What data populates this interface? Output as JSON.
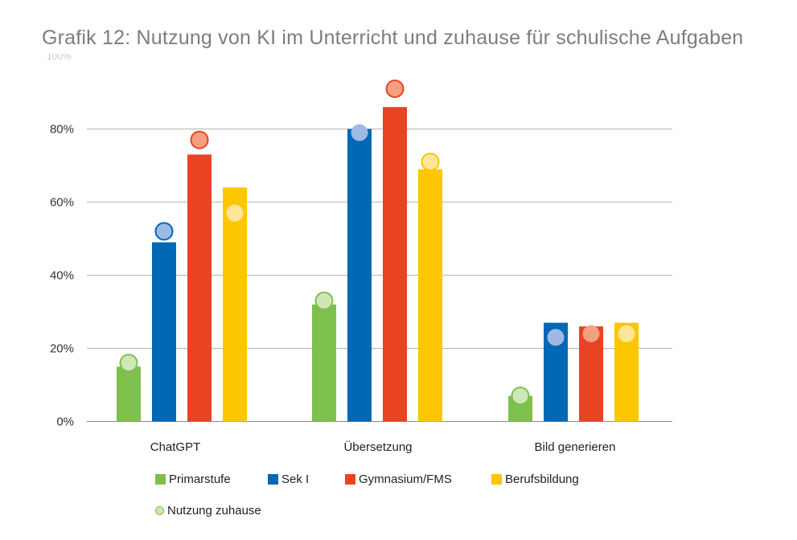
{
  "title": "Grafik 12: Nutzung von KI im Unterricht und zuhause für schulische Aufgaben",
  "chart_data": {
    "type": "bar",
    "title": "Grafik 12: Nutzung von KI im Unterricht und zuhause für schulische Aufgaben",
    "xlabel": "",
    "ylabel": "",
    "ylim": [
      0,
      100
    ],
    "yticks": [
      "0%",
      "20%",
      "40%",
      "60%",
      "80%"
    ],
    "ytick_values": [
      0,
      20,
      40,
      60,
      80
    ],
    "grid": true,
    "legend_position": "bottom",
    "categories": [
      "ChatGPT",
      "Übersetzung",
      "Bild generieren"
    ],
    "series": [
      {
        "name": "Primarstufe",
        "values": [
          15,
          32,
          7
        ],
        "color": "#7dc04b",
        "marker": [
          16,
          33,
          7
        ]
      },
      {
        "name": "Sek I",
        "values": [
          49,
          80,
          27
        ],
        "color": "#0068b4",
        "marker": [
          52,
          79,
          23
        ]
      },
      {
        "name": "Gymnasium/FMS",
        "values": [
          73,
          86,
          26
        ],
        "color": "#e84323",
        "marker": [
          77,
          91,
          24
        ]
      },
      {
        "name": "Berufsbildung",
        "values": [
          64,
          69,
          27
        ],
        "color": "#fdc700",
        "marker": [
          57,
          71,
          24
        ]
      }
    ],
    "marker_series_name": "Nutzung zuhause"
  }
}
